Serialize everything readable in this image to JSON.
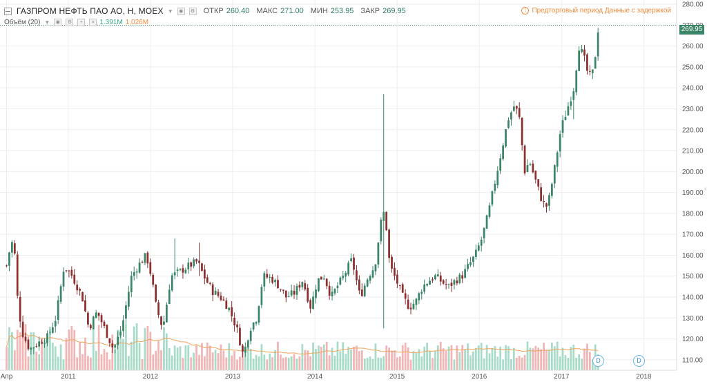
{
  "header": {
    "symbol": "ГАЗПРОМ НЕФТЬ ПАО АО, Н, MOEX",
    "open_label": "ОТКР",
    "open_value": "260.40",
    "high_label": "МАКС",
    "high_value": "271.00",
    "low_label": "МИН",
    "low_value": "253.95",
    "close_label": "ЗАКР",
    "close_value": "269.95",
    "notice": "Предторговый период  Данные с задержкой"
  },
  "volume_indicator": {
    "label": "Объём (20)",
    "value_a": "1.391M",
    "value_b": "1.026M"
  },
  "last_price_tag": "269.95",
  "markers": [
    "D",
    "D"
  ],
  "colors": {
    "up": "#3a8566",
    "down": "#8b2f2f",
    "vol_up": "#a9dcc8",
    "vol_down": "#f2b5b5",
    "vol_ma": "#f0a25a",
    "accent": "#f08a3c",
    "grid": "#eeeeee"
  },
  "chart_data": {
    "type": "candlestick",
    "y_axis": {
      "ticks": [
        110,
        120,
        130,
        140,
        150,
        160,
        170,
        180,
        190,
        200,
        210,
        220,
        230,
        240,
        250,
        260,
        270,
        280
      ],
      "ylim": [
        105,
        282
      ]
    },
    "x_axis": {
      "labels": [
        "Апр",
        "2011",
        "2012",
        "2013",
        "2014",
        "2015",
        "2016",
        "2017",
        "2018"
      ]
    },
    "x_tick_positions": [
      0,
      0.75,
      1.75,
      2.75,
      3.75,
      4.75,
      5.75,
      6.75,
      7.75
    ],
    "x_range": [
      -0.08,
      8.15
    ],
    "close_anchors": [
      [
        0.0,
        155
      ],
      [
        0.06,
        167
      ],
      [
        0.1,
        160
      ],
      [
        0.14,
        135
      ],
      [
        0.2,
        122
      ],
      [
        0.28,
        115
      ],
      [
        0.38,
        118
      ],
      [
        0.5,
        121
      ],
      [
        0.6,
        130
      ],
      [
        0.7,
        155
      ],
      [
        0.8,
        150
      ],
      [
        0.92,
        140
      ],
      [
        1.0,
        125
      ],
      [
        1.1,
        133
      ],
      [
        1.18,
        126
      ],
      [
        1.3,
        115
      ],
      [
        1.4,
        125
      ],
      [
        1.52,
        150
      ],
      [
        1.6,
        155
      ],
      [
        1.7,
        160
      ],
      [
        1.76,
        150
      ],
      [
        1.82,
        135
      ],
      [
        1.9,
        125
      ],
      [
        2.0,
        150
      ],
      [
        2.1,
        152
      ],
      [
        2.22,
        155
      ],
      [
        2.32,
        157
      ],
      [
        2.4,
        150
      ],
      [
        2.5,
        143
      ],
      [
        2.6,
        140
      ],
      [
        2.7,
        135
      ],
      [
        2.8,
        125
      ],
      [
        2.88,
        112
      ],
      [
        2.96,
        125
      ],
      [
        3.04,
        130
      ],
      [
        3.12,
        150
      ],
      [
        3.22,
        149
      ],
      [
        3.32,
        145
      ],
      [
        3.4,
        140
      ],
      [
        3.5,
        142
      ],
      [
        3.6,
        148
      ],
      [
        3.7,
        135
      ],
      [
        3.78,
        148
      ],
      [
        3.86,
        150
      ],
      [
        3.95,
        140
      ],
      [
        4.02,
        145
      ],
      [
        4.1,
        150
      ],
      [
        4.2,
        158
      ],
      [
        4.3,
        140
      ],
      [
        4.4,
        150
      ],
      [
        4.48,
        155
      ],
      [
        4.55,
        175
      ],
      [
        4.6,
        182
      ],
      [
        4.66,
        155
      ],
      [
        4.74,
        148
      ],
      [
        4.82,
        140
      ],
      [
        4.9,
        135
      ],
      [
        4.98,
        138
      ],
      [
        5.06,
        145
      ],
      [
        5.14,
        148
      ],
      [
        5.22,
        150
      ],
      [
        5.3,
        147
      ],
      [
        5.38,
        145
      ],
      [
        5.46,
        148
      ],
      [
        5.54,
        150
      ],
      [
        5.62,
        155
      ],
      [
        5.7,
        160
      ],
      [
        5.78,
        168
      ],
      [
        5.86,
        180
      ],
      [
        5.94,
        195
      ],
      [
        6.02,
        210
      ],
      [
        6.1,
        225
      ],
      [
        6.18,
        232
      ],
      [
        6.24,
        225
      ],
      [
        6.3,
        200
      ],
      [
        6.36,
        205
      ],
      [
        6.44,
        195
      ],
      [
        6.52,
        185
      ],
      [
        6.58,
        183
      ],
      [
        6.66,
        200
      ],
      [
        6.74,
        220
      ],
      [
        6.82,
        230
      ],
      [
        6.9,
        240
      ],
      [
        6.96,
        260
      ],
      [
        7.02,
        255
      ],
      [
        7.08,
        245
      ],
      [
        7.14,
        248
      ],
      [
        7.2,
        270
      ]
    ],
    "spikes": [
      {
        "x": 4.6,
        "high": 237,
        "low": 125
      },
      {
        "x": 2.35,
        "high": 166,
        "low": 150
      },
      {
        "x": 2.06,
        "high": 168,
        "low": 150
      },
      {
        "x": 6.9,
        "high": 240,
        "low": 225
      }
    ],
    "last_price": 269.95
  }
}
